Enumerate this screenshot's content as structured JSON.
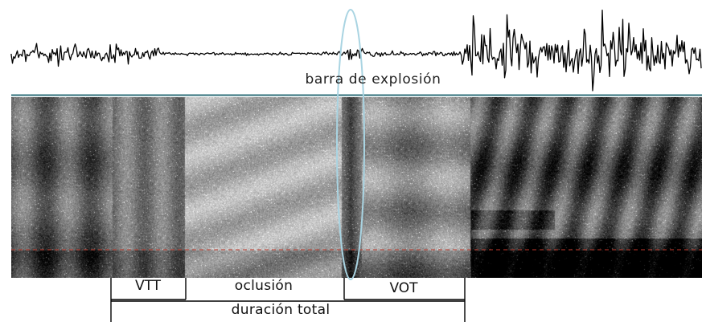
{
  "annotations": {
    "burst": "barra de explosión",
    "vtt": "VTT",
    "closure": "oclusión",
    "vot": "VOT",
    "total": "duración total"
  },
  "colors": {
    "waveform": "#000000",
    "divider": "#2f6f7a",
    "burst_ellipse": "#a9d4e2",
    "reference_line": "#c0392b",
    "bracket": "#000000"
  }
}
